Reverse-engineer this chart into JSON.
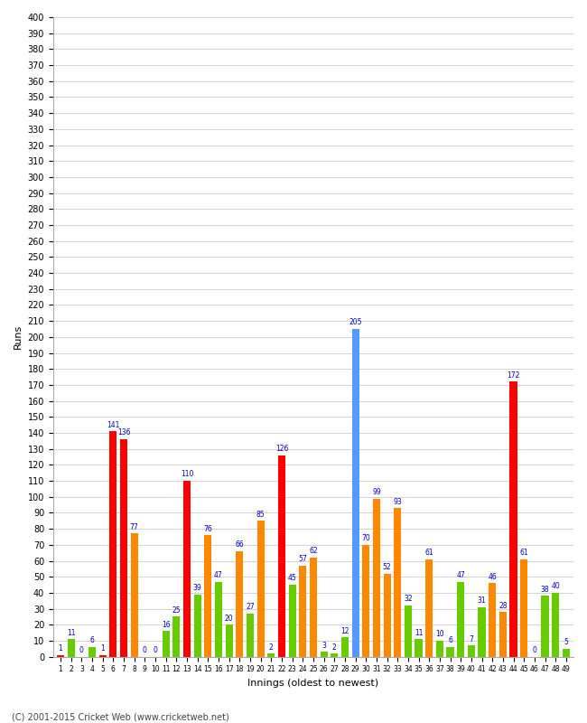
{
  "xlabel": "Innings (oldest to newest)",
  "ylabel": "Runs",
  "footer": "(C) 2001-2015 Cricket Web (www.cricketweb.net)",
  "ylim": [
    0,
    400
  ],
  "bar_data": [
    {
      "inn": 1,
      "val": 1,
      "color": "red"
    },
    {
      "inn": 2,
      "val": 11,
      "color": "green"
    },
    {
      "inn": 3,
      "val": 0,
      "color": "red"
    },
    {
      "inn": 4,
      "val": 6,
      "color": "green"
    },
    {
      "inn": 5,
      "val": 1,
      "color": "red"
    },
    {
      "inn": 6,
      "val": 141,
      "color": "red"
    },
    {
      "inn": 7,
      "val": 136,
      "color": "red"
    },
    {
      "inn": 8,
      "val": 77,
      "color": "orange"
    },
    {
      "inn": 9,
      "val": 0,
      "color": "red"
    },
    {
      "inn": 10,
      "val": 0,
      "color": "green"
    },
    {
      "inn": 11,
      "val": 16,
      "color": "green"
    },
    {
      "inn": 12,
      "val": 25,
      "color": "green"
    },
    {
      "inn": 13,
      "val": 110,
      "color": "red"
    },
    {
      "inn": 14,
      "val": 39,
      "color": "green"
    },
    {
      "inn": 15,
      "val": 76,
      "color": "orange"
    },
    {
      "inn": 16,
      "val": 47,
      "color": "green"
    },
    {
      "inn": 17,
      "val": 20,
      "color": "green"
    },
    {
      "inn": 18,
      "val": 66,
      "color": "orange"
    },
    {
      "inn": 19,
      "val": 27,
      "color": "green"
    },
    {
      "inn": 20,
      "val": 85,
      "color": "orange"
    },
    {
      "inn": 21,
      "val": 2,
      "color": "green"
    },
    {
      "inn": 22,
      "val": 126,
      "color": "red"
    },
    {
      "inn": 23,
      "val": 45,
      "color": "green"
    },
    {
      "inn": 24,
      "val": 57,
      "color": "orange"
    },
    {
      "inn": 25,
      "val": 62,
      "color": "orange"
    },
    {
      "inn": 26,
      "val": 3,
      "color": "green"
    },
    {
      "inn": 27,
      "val": 2,
      "color": "green"
    },
    {
      "inn": 28,
      "val": 12,
      "color": "green"
    },
    {
      "inn": 29,
      "val": 205,
      "color": "blue"
    },
    {
      "inn": 30,
      "val": 70,
      "color": "orange"
    },
    {
      "inn": 31,
      "val": 99,
      "color": "orange"
    },
    {
      "inn": 32,
      "val": 52,
      "color": "orange"
    },
    {
      "inn": 33,
      "val": 93,
      "color": "orange"
    },
    {
      "inn": 34,
      "val": 32,
      "color": "green"
    },
    {
      "inn": 35,
      "val": 11,
      "color": "green"
    },
    {
      "inn": 36,
      "val": 61,
      "color": "orange"
    },
    {
      "inn": 37,
      "val": 10,
      "color": "green"
    },
    {
      "inn": 38,
      "val": 6,
      "color": "green"
    },
    {
      "inn": 39,
      "val": 47,
      "color": "green"
    },
    {
      "inn": 40,
      "val": 7,
      "color": "green"
    },
    {
      "inn": 41,
      "val": 31,
      "color": "green"
    },
    {
      "inn": 42,
      "val": 46,
      "color": "orange"
    },
    {
      "inn": 43,
      "val": 28,
      "color": "orange"
    },
    {
      "inn": 44,
      "val": 172,
      "color": "red"
    },
    {
      "inn": 45,
      "val": 61,
      "color": "orange"
    },
    {
      "inn": 46,
      "val": 0,
      "color": "red"
    },
    {
      "inn": 47,
      "val": 38,
      "color": "green"
    },
    {
      "inn": 48,
      "val": 40,
      "color": "green"
    },
    {
      "inn": 49,
      "val": 5,
      "color": "green"
    }
  ],
  "color_map": {
    "red": "#ff0000",
    "orange": "#ff8800",
    "green": "#66cc00",
    "blue": "#5599ff"
  },
  "bg_color": "#ffffff",
  "grid_color": "#cccccc",
  "label_color": "#0000cc",
  "label_fontsize": 5.5,
  "bar_width": 0.7,
  "figsize": [
    6.5,
    8.0
  ],
  "dpi": 100
}
